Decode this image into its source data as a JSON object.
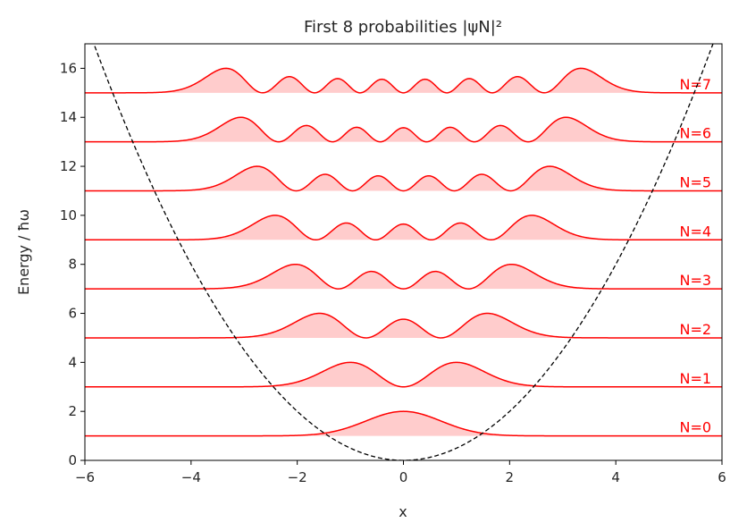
{
  "chart_data": {
    "type": "area",
    "title": "First 8 probabilities |ψN|²",
    "xlabel": "x",
    "ylabel": "Energy / ħω",
    "xlim": [
      -6,
      6
    ],
    "ylim": [
      0,
      17
    ],
    "xticks": [
      -6,
      -4,
      -2,
      0,
      2,
      4,
      6
    ],
    "yticks": [
      0,
      2,
      4,
      6,
      8,
      10,
      12,
      14,
      16
    ],
    "xtick_labels": [
      "−6",
      "−4",
      "−2",
      "0",
      "2",
      "4",
      "6"
    ],
    "ytick_labels": [
      "0",
      "2",
      "4",
      "6",
      "8",
      "10",
      "12",
      "14",
      "16"
    ],
    "grid": false,
    "potential": {
      "expression": "x^2/2",
      "style": "dashed",
      "color": "#000000"
    },
    "curve_color": "#ff0000",
    "fill_color": "#ffcccc",
    "series": [
      {
        "label": "N=0",
        "n": 0,
        "baseline": 1,
        "peak_height": 1.0
      },
      {
        "label": "N=1",
        "n": 1,
        "baseline": 3,
        "peak_height": 1.0
      },
      {
        "label": "N=2",
        "n": 2,
        "baseline": 5,
        "peak_height": 1.0
      },
      {
        "label": "N=3",
        "n": 3,
        "baseline": 7,
        "peak_height": 1.0
      },
      {
        "label": "N=4",
        "n": 4,
        "baseline": 9,
        "peak_height": 1.0
      },
      {
        "label": "N=5",
        "n": 5,
        "baseline": 11,
        "peak_height": 1.0
      },
      {
        "label": "N=6",
        "n": 6,
        "baseline": 13,
        "peak_height": 1.0
      },
      {
        "label": "N=7",
        "n": 7,
        "baseline": 15,
        "peak_height": 1.0
      }
    ],
    "label_x": 5.5
  }
}
